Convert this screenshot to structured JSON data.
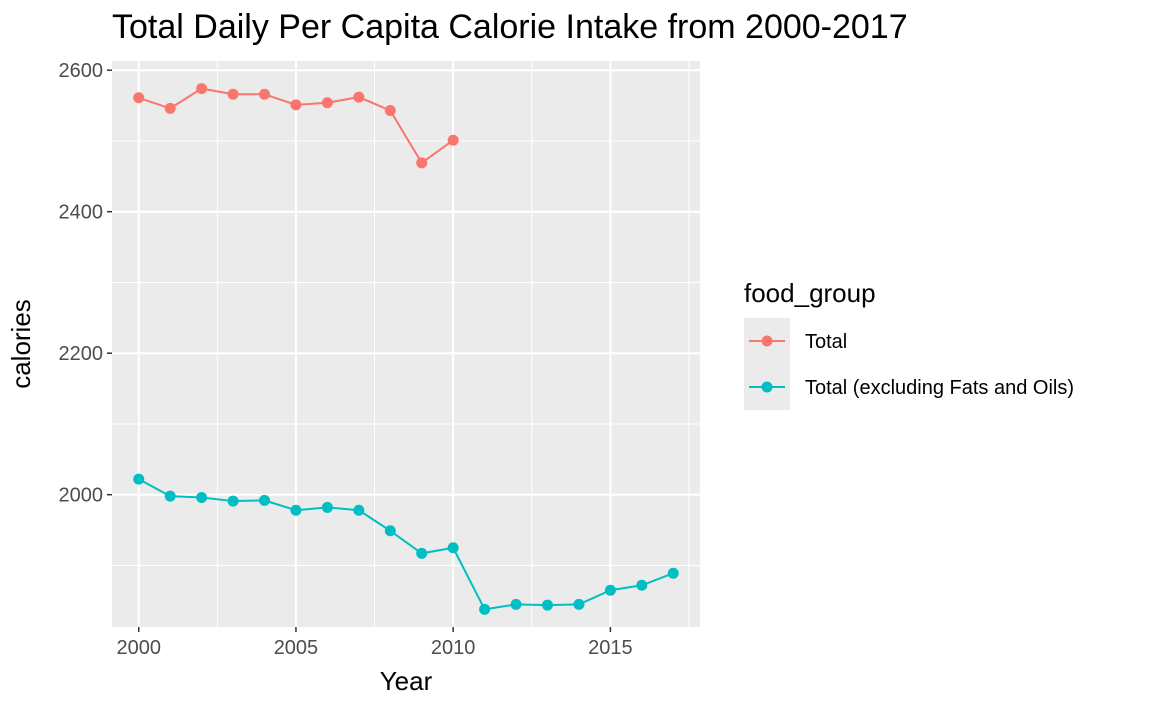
{
  "chart_data": {
    "type": "line",
    "title": "Total Daily Per Capita Calorie Intake from 2000-2017",
    "xlabel": "Year",
    "ylabel": "calories",
    "xlim": [
      1999.15,
      2017.85
    ],
    "ylim": [
      1813,
      2613
    ],
    "x_ticks": [
      2000,
      2005,
      2010,
      2015
    ],
    "x_tick_labels": [
      "2000",
      "2005",
      "2010",
      "2015"
    ],
    "y_ticks": [
      2000,
      2200,
      2400,
      2600
    ],
    "y_tick_labels": [
      "2000",
      "2200",
      "2400",
      "2600"
    ],
    "grid": true,
    "legend": {
      "title": "food_group",
      "position": "right"
    },
    "series": [
      {
        "name": "Total",
        "color": "#F8766D",
        "x": [
          2000,
          2001,
          2002,
          2003,
          2004,
          2005,
          2006,
          2007,
          2008,
          2009,
          2010
        ],
        "values": [
          2561,
          2546,
          2574,
          2566,
          2566,
          2551,
          2554,
          2562,
          2543,
          2469,
          2501
        ]
      },
      {
        "name": "Total (excluding Fats and Oils)",
        "color": "#00BFC4",
        "x": [
          2000,
          2001,
          2002,
          2003,
          2004,
          2005,
          2006,
          2007,
          2008,
          2009,
          2010,
          2011,
          2012,
          2013,
          2014,
          2015,
          2016,
          2017
        ],
        "values": [
          2022,
          1998,
          1996,
          1991,
          1992,
          1978,
          1982,
          1978,
          1949,
          1917,
          1925,
          1838,
          1845,
          1844,
          1845,
          1865,
          1872,
          1889
        ]
      }
    ]
  }
}
